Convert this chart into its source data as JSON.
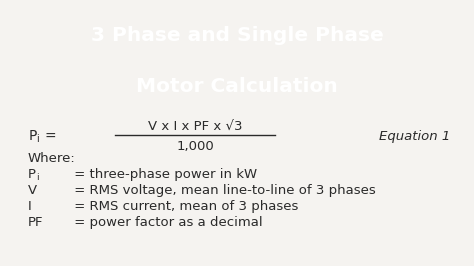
{
  "title_line1": "3 Phase and Single Phase",
  "title_line2": "Motor Calculation",
  "title_bg_color": "#dd0000",
  "title_text_color": "#ffffff",
  "body_bg_color": "#f5f3f0",
  "body_text_color": "#2a2a2a",
  "equation_label": "Equation 1",
  "numerator": "V x I x PF x √3",
  "denominator": "1,000",
  "where_text": "Where:",
  "definitions": [
    [
      "P",
      "i",
      " = three-phase power in kW"
    ],
    [
      "V",
      "",
      " = RMS voltage, mean line-to-line of 3 phases"
    ],
    [
      "I",
      "",
      " = RMS current, mean of 3 phases"
    ],
    [
      "PF",
      "",
      " = power factor as a decimal"
    ]
  ],
  "figsize": [
    4.74,
    2.66
  ],
  "dpi": 100
}
